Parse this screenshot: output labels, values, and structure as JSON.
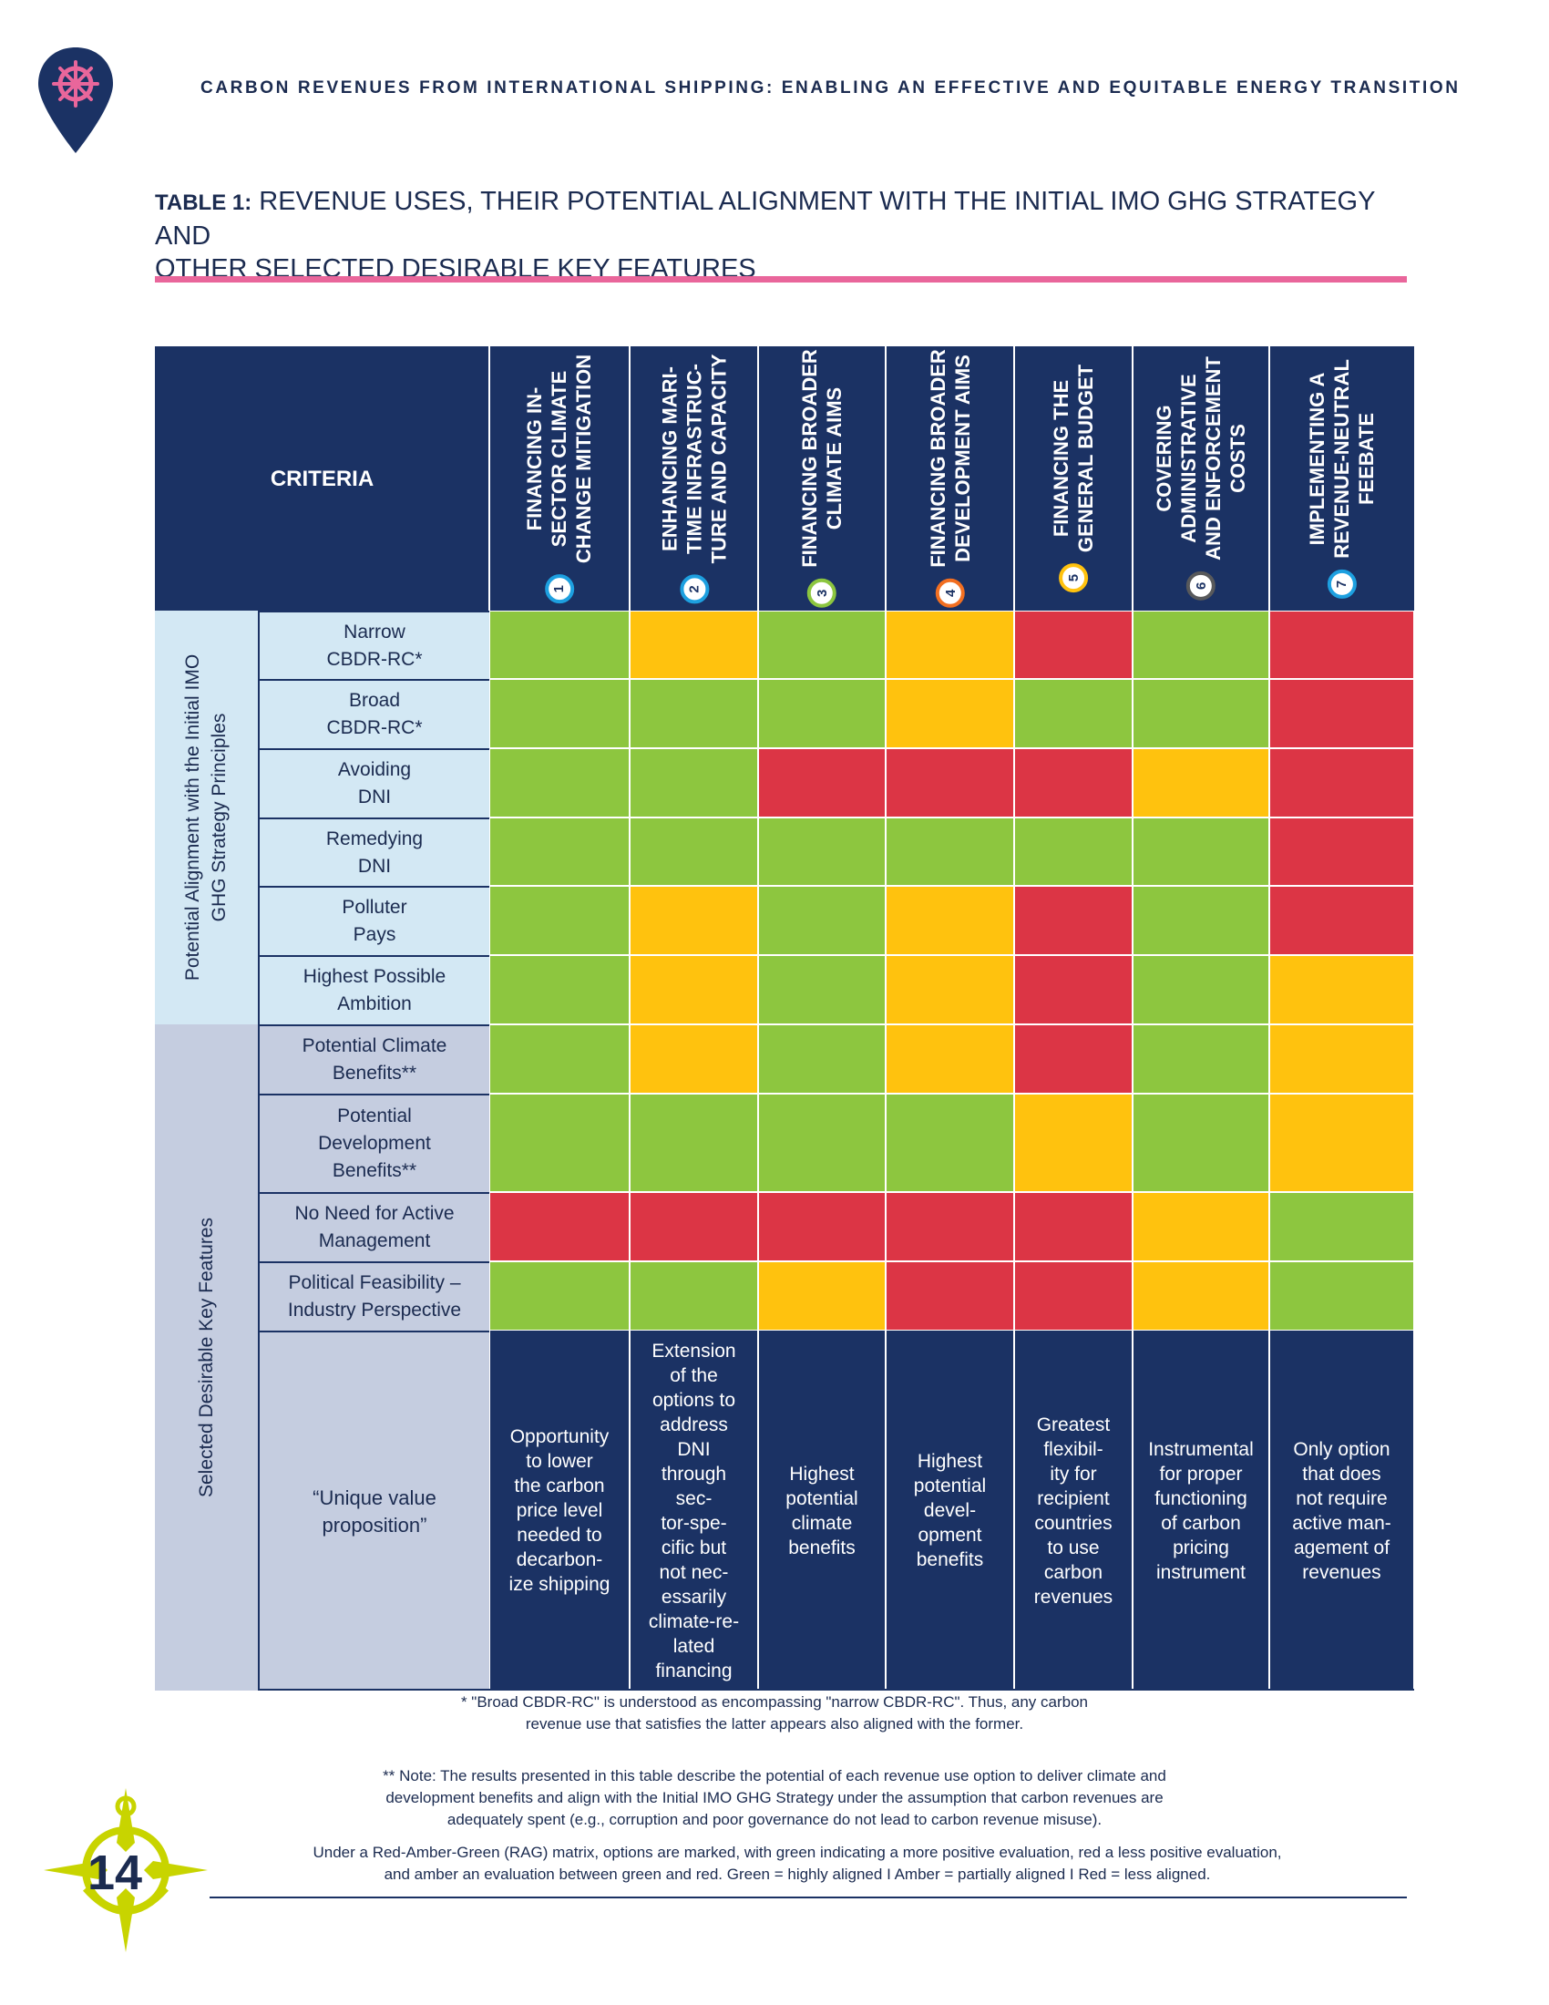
{
  "running_head": "CARBON REVENUES FROM INTERNATIONAL SHIPPING: ENABLING AN EFFECTIVE AND EQUITABLE ENERGY TRANSITION",
  "table_title": {
    "label": "TABLE 1:",
    "line1": " REVENUE USES, THEIR POTENTIAL ALIGNMENT WITH THE INITIAL IMO GHG STRATEGY AND",
    "line2": "OTHER SELECTED DESIRABLE KEY FEATURES"
  },
  "criteria_label": "CRITERIA",
  "columns": [
    {
      "num": "1",
      "color": "#1da0e0",
      "lines": [
        "FINANCING IN-",
        "SECTOR CLIMATE",
        "CHANGE MITIGATION"
      ]
    },
    {
      "num": "2",
      "color": "#1da0e0",
      "lines": [
        "ENHANCING MARI-",
        "TIME INFRASTRUC-",
        "TURE AND CAPACITY"
      ]
    },
    {
      "num": "3",
      "color": "#8cc63f",
      "lines": [
        "FINANCING BROADER",
        "CLIMATE AIMS"
      ]
    },
    {
      "num": "4",
      "color": "#f26f21",
      "lines": [
        "FINANCING BROADER",
        "DEVELOPMENT AIMS"
      ]
    },
    {
      "num": "5",
      "color": "#ffc20e",
      "lines": [
        "FINANCING THE",
        "GENERAL BUDGET"
      ]
    },
    {
      "num": "6",
      "color": "#58595b",
      "lines": [
        "COVERING",
        "ADMINISTRATIVE",
        "AND ENFORCEMENT",
        "COSTS"
      ]
    },
    {
      "num": "7",
      "color": "#1da0e0",
      "lines": [
        "IMPLEMENTING A",
        "REVENUE-NEUTRAL",
        "FEEBATE"
      ]
    }
  ],
  "groups": [
    {
      "lines": [
        "Potential Alignment with the Initial IMO",
        "GHG Strategy Principles"
      ]
    },
    {
      "lines": [
        "Selected Desirable Key Features"
      ]
    }
  ],
  "rows": [
    {
      "lines": [
        "Narrow",
        "CBDR-RC*"
      ],
      "ratings": [
        "G",
        "A",
        "G",
        "A",
        "R",
        "G",
        "R"
      ]
    },
    {
      "lines": [
        "Broad",
        "CBDR-RC*"
      ],
      "ratings": [
        "G",
        "G",
        "G",
        "A",
        "G",
        "G",
        "R"
      ]
    },
    {
      "lines": [
        "Avoiding",
        "DNI"
      ],
      "ratings": [
        "G",
        "G",
        "R",
        "R",
        "R",
        "A",
        "R"
      ]
    },
    {
      "lines": [
        "Remedying",
        "DNI"
      ],
      "ratings": [
        "G",
        "G",
        "G",
        "G",
        "G",
        "G",
        "R"
      ]
    },
    {
      "lines": [
        "Polluter",
        "Pays"
      ],
      "ratings": [
        "G",
        "A",
        "G",
        "A",
        "R",
        "G",
        "R"
      ]
    },
    {
      "lines": [
        "Highest Possible",
        "Ambition"
      ],
      "ratings": [
        "G",
        "A",
        "G",
        "A",
        "R",
        "G",
        "A"
      ]
    },
    {
      "lines": [
        "Potential Climate",
        "Benefits**"
      ],
      "ratings": [
        "G",
        "A",
        "G",
        "A",
        "R",
        "G",
        "A"
      ]
    },
    {
      "lines": [
        "Potential",
        "Development",
        "Benefits**"
      ],
      "ratings": [
        "G",
        "G",
        "G",
        "G",
        "A",
        "G",
        "A"
      ]
    },
    {
      "lines": [
        "No Need for Active",
        "Management"
      ],
      "ratings": [
        "R",
        "R",
        "R",
        "R",
        "R",
        "A",
        "G"
      ]
    },
    {
      "lines": [
        "Political Feasibility –",
        "Industry Perspective"
      ],
      "ratings": [
        "G",
        "G",
        "A",
        "R",
        "R",
        "A",
        "G"
      ]
    }
  ],
  "rating_colors": {
    "G": "#8dc63f",
    "A": "#ffc20e",
    "R": "#dc3545"
  },
  "uvp_label": "“Unique value proposition”",
  "uvp": [
    [
      "Opportunity",
      "to lower",
      "the carbon",
      "price level",
      "needed to",
      "decarbon-",
      "ize shipping"
    ],
    [
      "Extension",
      "of the",
      "options to",
      "address",
      "DNI",
      "through",
      "sec-",
      "tor-spe-",
      "cific but",
      "not nec-",
      "essarily",
      "climate-re-",
      "lated",
      "financing"
    ],
    [
      "Highest",
      "potential",
      "climate",
      "benefits"
    ],
    [
      "Highest",
      "potential",
      "devel-",
      "opment",
      "benefits"
    ],
    [
      "Greatest",
      "flexibil-",
      "ity for",
      "recipient",
      "countries",
      "to use",
      "carbon",
      "revenues"
    ],
    [
      "Instrumental",
      "for proper",
      "functioning",
      "of carbon",
      "pricing",
      "instrument"
    ],
    [
      "Only option",
      "that does",
      "not require",
      "active man-",
      "agement of",
      "revenues"
    ]
  ],
  "footnotes": {
    "f1": [
      "* \"Broad CBDR-RC\" is understood as encompassing \"narrow CBDR-RC\". Thus, any carbon",
      "revenue use that satisfies the latter appears also aligned with the former."
    ],
    "f2": [
      "** Note: The results presented in this table describe the potential of each revenue use option to deliver climate and",
      "development benefits and align with the Initial IMO GHG Strategy under the assumption that carbon revenues are",
      "adequately spent (e.g., corruption and poor governance do not lead to carbon revenue misuse)."
    ],
    "f3": [
      "Under a Red-Amber-Green (RAG) matrix, options are marked, with green indicating a more positive evaluation, red a less positive evaluation,",
      "and amber an evaluation between green and red. Green = highly aligned I Amber = partially aligned I Red = less aligned."
    ]
  },
  "page_number": "14",
  "icons": {
    "top": "ship-wheel-pin-icon",
    "bottom": "compass-anchor-icon"
  }
}
